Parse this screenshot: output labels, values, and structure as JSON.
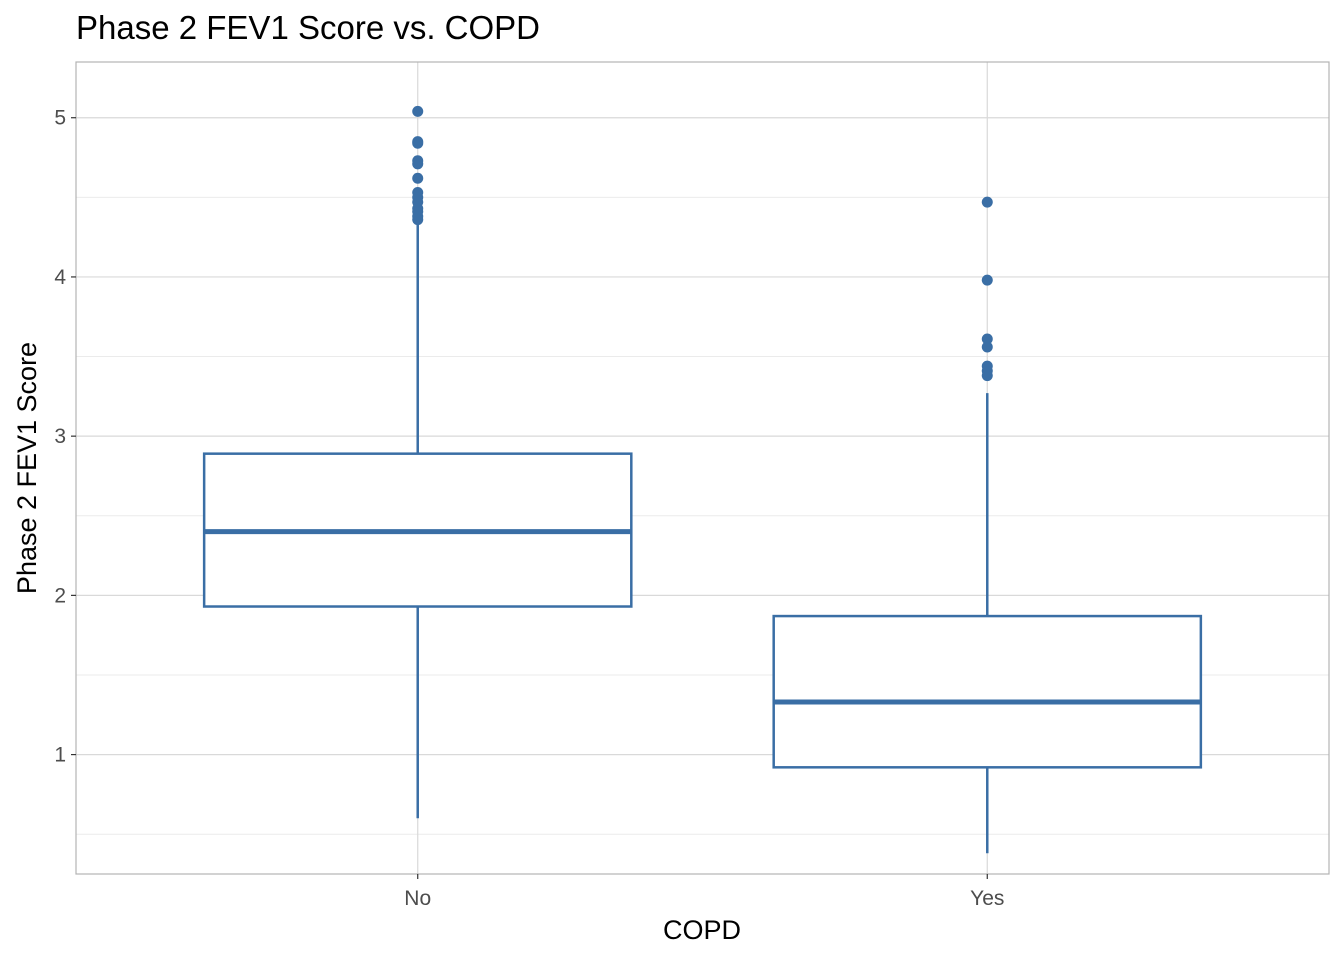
{
  "chart_data": {
    "type": "boxplot",
    "title": "Phase 2 FEV1 Score vs. COPD",
    "xlabel": "COPD",
    "ylabel": "Phase 2 FEV1 Score",
    "categories": [
      "No",
      "Yes"
    ],
    "ylim": [
      0.25,
      5.35
    ],
    "yticks": [
      1,
      2,
      3,
      4,
      5
    ],
    "yticks_labels": [
      "1",
      "2",
      "3",
      "4",
      "5"
    ],
    "grid": true,
    "legend": "none",
    "color": "#3a6ea5",
    "boxes": [
      {
        "category": "No",
        "whisker_low": 0.6,
        "q1": 1.93,
        "median": 2.4,
        "q3": 2.89,
        "whisker_high": 4.35,
        "outliers": [
          4.36,
          4.38,
          4.41,
          4.43,
          4.47,
          4.5,
          4.53,
          4.62,
          4.71,
          4.73,
          4.84,
          4.85,
          5.04
        ]
      },
      {
        "category": "Yes",
        "whisker_low": 0.38,
        "q1": 0.92,
        "median": 1.33,
        "q3": 1.87,
        "whisker_high": 3.27,
        "outliers": [
          3.38,
          3.41,
          3.44,
          3.56,
          3.61,
          3.98,
          4.47
        ]
      }
    ]
  }
}
